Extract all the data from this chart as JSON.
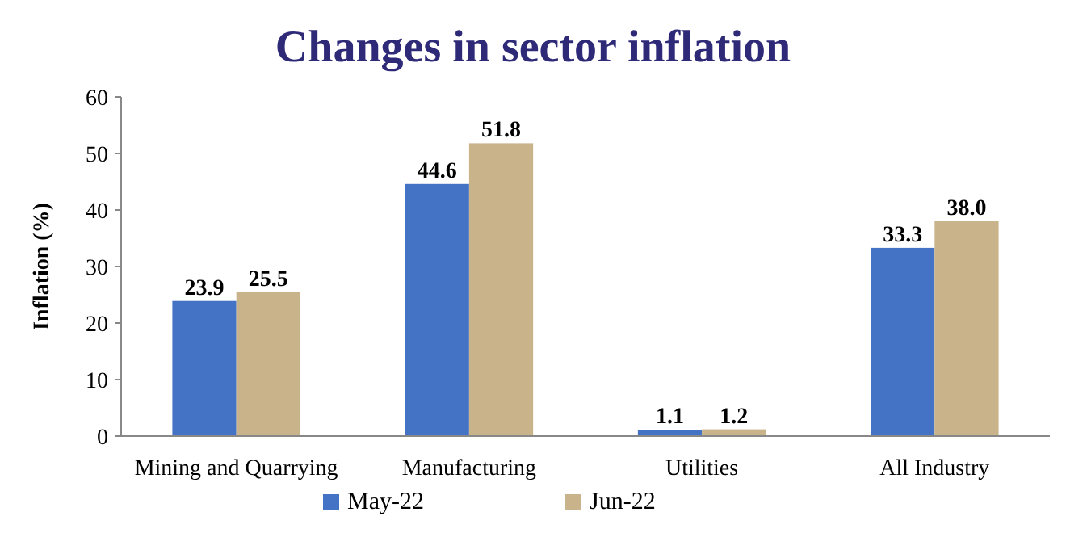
{
  "chart_data": {
    "type": "bar",
    "title": "Changes in sector inflation",
    "ylabel": "Inflation (%)",
    "categories": [
      "Mining and Quarrying",
      "Manufacturing",
      "Utilities",
      "All Industry"
    ],
    "series": [
      {
        "name": "May-22",
        "color": "#4472c4",
        "values": [
          23.9,
          44.6,
          1.1,
          33.3
        ],
        "value_labels": [
          "23.9",
          "44.6",
          "1.1",
          "33.3"
        ]
      },
      {
        "name": "Jun-22",
        "color": "#c9b38a",
        "values": [
          25.5,
          51.8,
          1.2,
          38.0
        ],
        "value_labels": [
          "25.5",
          "51.8",
          "1.2",
          "38.0"
        ]
      }
    ],
    "ylim": [
      0,
      60
    ],
    "yticks": [
      0,
      10,
      20,
      30,
      40,
      50,
      60
    ],
    "grid": false,
    "legend": "bottom"
  }
}
